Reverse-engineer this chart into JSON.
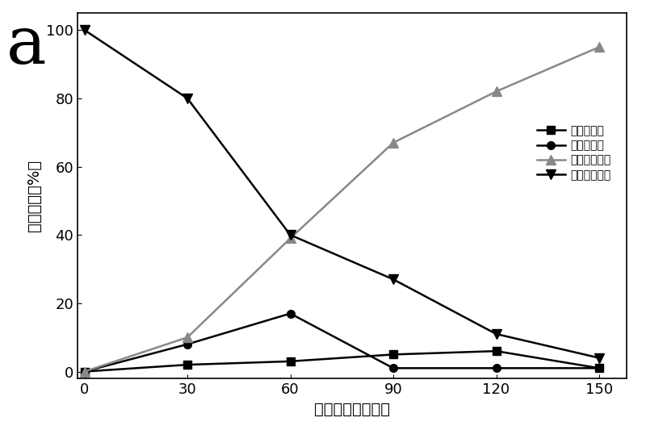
{
  "x": [
    0,
    30,
    60,
    90,
    120,
    150
  ],
  "series": [
    {
      "label": "偶氮化合物",
      "y": [
        0,
        2,
        3,
        5,
        6,
        1
      ],
      "marker": "s",
      "color": "#000000",
      "linestyle": "-",
      "markersize": 7
    },
    {
      "label": "氧化偶氮物",
      "y": [
        0,
        8,
        17,
        1,
        1,
        1
      ],
      "marker": "o",
      "color": "#000000",
      "linestyle": "-",
      "markersize": 7
    },
    {
      "label": "对氨基苯乙酱",
      "y": [
        0,
        10,
        39,
        67,
        82,
        95
      ],
      "marker": "^",
      "color": "#888888",
      "linestyle": "-",
      "markersize": 8
    },
    {
      "label": "对硝基苯乙酱",
      "y": [
        100,
        80,
        40,
        27,
        11,
        4
      ],
      "marker": "v",
      "color": "#000000",
      "linestyle": "-",
      "markersize": 8
    }
  ],
  "xlabel": "反应时间（分钟）",
  "ylabel": "产物分布（%）",
  "xlim": [
    -2,
    158
  ],
  "ylim": [
    -2,
    105
  ],
  "xticks": [
    0,
    30,
    60,
    90,
    120,
    150
  ],
  "yticks": [
    0,
    20,
    40,
    60,
    80,
    100
  ],
  "panel_label": "a",
  "background_color": "#ffffff",
  "label_fontsize": 14,
  "tick_fontsize": 13,
  "legend_fontsize": 12,
  "panel_fontsize": 60
}
